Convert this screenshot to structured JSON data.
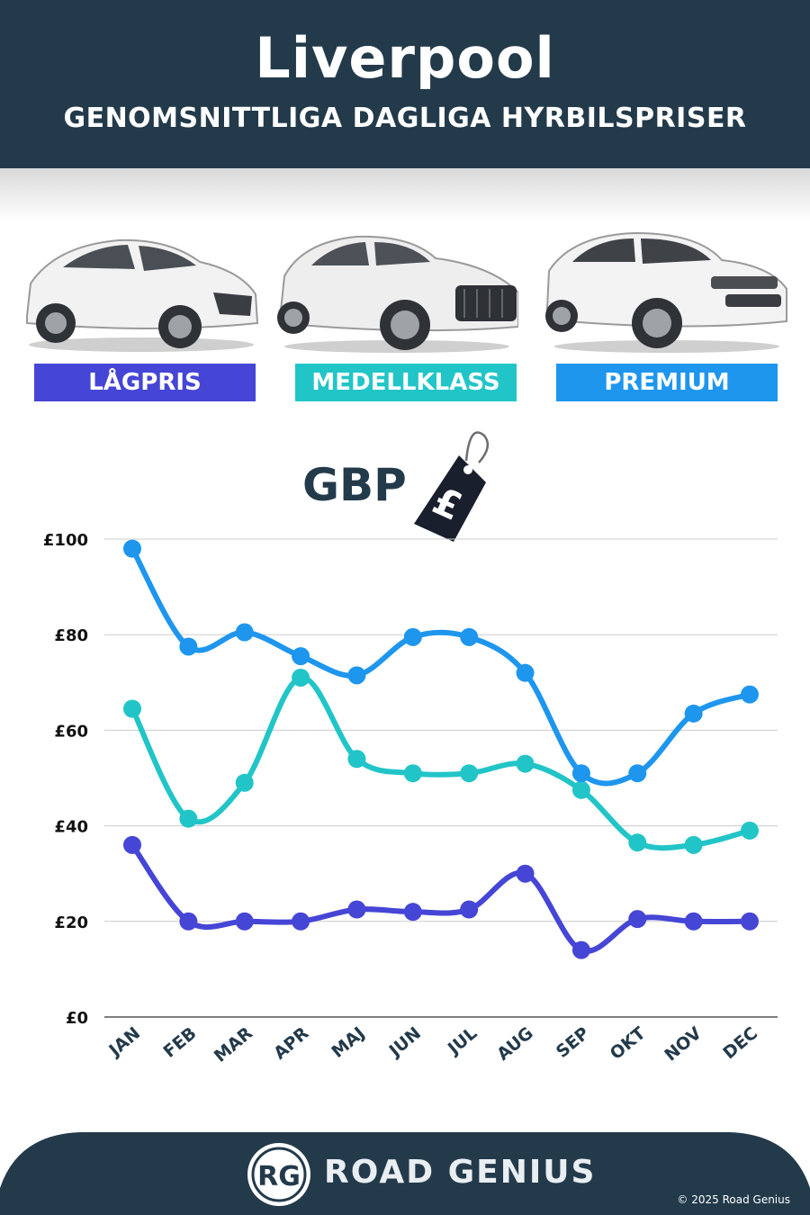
{
  "header": {
    "title": "Liverpool",
    "subtitle": "GENOMSNITTLIGA DAGLIGA HYRBILSPRISER"
  },
  "categories": [
    {
      "label": "LÅGPRIS",
      "color": "#4545d6"
    },
    {
      "label": "MEDELLKLASS",
      "color": "#22c5c7"
    },
    {
      "label": "PREMIUM",
      "color": "#1e96ee"
    }
  ],
  "currency": {
    "label": "GBP",
    "symbol": "£"
  },
  "chart_data": {
    "type": "line",
    "x": [
      "JAN",
      "FEB",
      "MAR",
      "APR",
      "MAJ",
      "JUN",
      "JUL",
      "AUG",
      "SEP",
      "OKT",
      "NOV",
      "DEC"
    ],
    "ylim": [
      0,
      100
    ],
    "yticks": [
      0,
      20,
      40,
      60,
      80,
      100
    ],
    "ytick_labels": [
      "£0",
      "£20",
      "£40",
      "£60",
      "£80",
      "£100"
    ],
    "grid": true,
    "series": [
      {
        "name": "LÅGPRIS",
        "color": "#4545d6",
        "values": [
          36,
          20,
          20,
          20,
          22.5,
          22,
          22.5,
          30,
          14,
          20.5,
          20,
          20
        ]
      },
      {
        "name": "MEDELLKLASS",
        "color": "#22c5c7",
        "values": [
          64.5,
          41.5,
          49,
          71,
          54,
          51,
          51,
          53,
          47.5,
          36.5,
          36,
          39
        ]
      },
      {
        "name": "PREMIUM",
        "color": "#1e96ee",
        "values": [
          98,
          77.5,
          80.5,
          75.5,
          71.5,
          79.5,
          79.5,
          72,
          51,
          51,
          63.5,
          67.5
        ]
      }
    ]
  },
  "footer": {
    "logo_text": "RG",
    "brand": "ROAD GENIUS",
    "copyright": "© 2025 Road Genius"
  }
}
